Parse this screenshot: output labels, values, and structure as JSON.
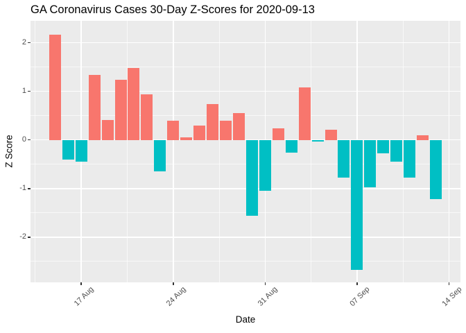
{
  "chart_data": {
    "type": "bar",
    "title": "GA Coronavirus Cases 30-Day Z-Scores for 2020-09-13",
    "xlabel": "Date",
    "ylabel": "Z Score",
    "dates": [
      "2020-08-15",
      "2020-08-16",
      "2020-08-17",
      "2020-08-18",
      "2020-08-19",
      "2020-08-20",
      "2020-08-21",
      "2020-08-22",
      "2020-08-23",
      "2020-08-24",
      "2020-08-25",
      "2020-08-26",
      "2020-08-27",
      "2020-08-28",
      "2020-08-29",
      "2020-08-30",
      "2020-08-31",
      "2020-09-01",
      "2020-09-02",
      "2020-09-03",
      "2020-09-04",
      "2020-09-05",
      "2020-09-06",
      "2020-09-07",
      "2020-09-08",
      "2020-09-09",
      "2020-09-10",
      "2020-09-11",
      "2020-09-12",
      "2020-09-13"
    ],
    "values": [
      2.17,
      -0.4,
      -0.44,
      1.34,
      0.41,
      1.24,
      1.48,
      0.94,
      -0.64,
      0.4,
      0.05,
      0.29,
      0.74,
      0.4,
      0.55,
      -1.56,
      -1.05,
      0.24,
      -0.26,
      1.08,
      -0.03,
      0.21,
      -0.78,
      -2.68,
      -0.98,
      -0.27,
      -0.44,
      -0.77,
      0.1,
      -1.22
    ],
    "x_ticks": [
      {
        "label": "17 Aug",
        "day_index": 2
      },
      {
        "label": "24 Aug",
        "day_index": 9
      },
      {
        "label": "31 Aug",
        "day_index": 16
      },
      {
        "label": "07 Sep",
        "day_index": 23
      },
      {
        "label": "14 Sep",
        "day_index": 30
      }
    ],
    "x_minor_day_indices": [
      -1.5,
      5.5,
      12.5,
      19.5,
      26.5
    ],
    "y_ticks": [
      2,
      1,
      0,
      -1,
      -2
    ],
    "y_minor_ticks": [
      1.5,
      0.5,
      -0.5,
      -1.5,
      -2.5
    ],
    "ylim": [
      -2.93,
      2.45
    ],
    "grid": true,
    "legend": false,
    "colors": {
      "bar_positive": "#F8766D",
      "bar_negative": "#00BFC4",
      "panel_background": "#EBEBEB",
      "gridline": "#FFFFFF",
      "axis_text": "#4D4D4D",
      "tick_mark": "#333333",
      "title_text": "#000000"
    }
  }
}
